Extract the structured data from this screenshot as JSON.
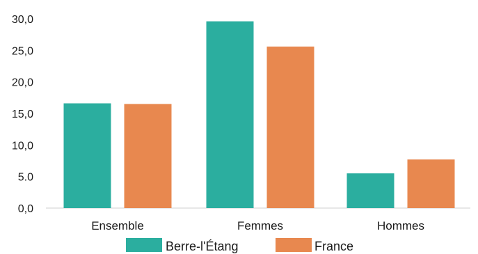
{
  "chart_data": {
    "type": "bar",
    "categories": [
      "Ensemble",
      "Femmes",
      "Hommes"
    ],
    "series": [
      {
        "name": "Berre-l'Étang",
        "color": "#2bae9f",
        "values": [
          16.6,
          29.6,
          5.5
        ]
      },
      {
        "name": "France",
        "color": "#e8884f",
        "values": [
          16.5,
          25.6,
          7.7
        ]
      }
    ],
    "title": "",
    "xlabel": "",
    "ylabel": "",
    "ylim": [
      0,
      30
    ],
    "yticks": [
      "0,0",
      "5.0",
      "10,0",
      "15,0",
      "20,0",
      "25,0",
      "30,0"
    ],
    "grid": false,
    "legend_position": "bottom"
  }
}
